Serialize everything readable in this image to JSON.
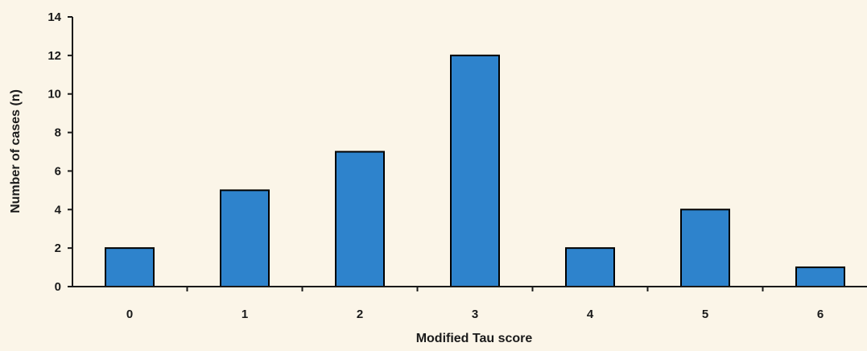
{
  "colors": {
    "background": "#fbf5e8",
    "bar_fill": "#2e83cc",
    "bar_stroke": "#000000",
    "axis": "#1a1a1a"
  },
  "chart_data": {
    "type": "bar",
    "title": "",
    "xlabel": "Modified Tau score",
    "ylabel": "Number of cases (n)",
    "categories": [
      "0",
      "1",
      "2",
      "3",
      "4",
      "5",
      "6"
    ],
    "values": [
      2,
      5,
      7,
      12,
      2,
      4,
      1
    ],
    "ylim": [
      0,
      14
    ],
    "yticks": [
      0,
      2,
      4,
      6,
      8,
      10,
      12,
      14
    ],
    "grid": false,
    "legend": "none"
  }
}
